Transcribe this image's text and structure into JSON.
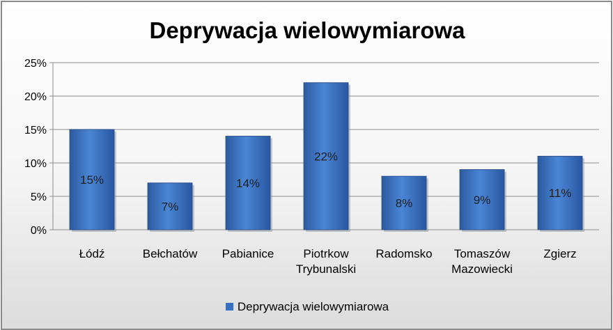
{
  "chart_data": {
    "type": "bar",
    "title": "Deprywacja wielowymiarowa",
    "categories": [
      [
        "Łódź"
      ],
      [
        "Bełchatów"
      ],
      [
        "Pabianice"
      ],
      [
        "Piotrkow",
        "Trybunalski"
      ],
      [
        "Radomsko"
      ],
      [
        "Tomaszów",
        "Mazowiecki"
      ],
      [
        "Zgierz"
      ]
    ],
    "series": [
      {
        "name": "Deprywacja wielowymiarowa",
        "values": [
          15,
          7,
          14,
          22,
          8,
          9,
          11
        ],
        "labels": [
          "15%",
          "7%",
          "14%",
          "22%",
          "8%",
          "9%",
          "11%"
        ],
        "color": "#3a6fbf"
      }
    ],
    "ylim": [
      0,
      25
    ],
    "yticks": [
      0,
      5,
      10,
      15,
      20,
      25
    ],
    "ytick_labels": [
      "0%",
      "5%",
      "10%",
      "15%",
      "20%",
      "25%"
    ],
    "grid": true,
    "legend_position": "bottom"
  }
}
